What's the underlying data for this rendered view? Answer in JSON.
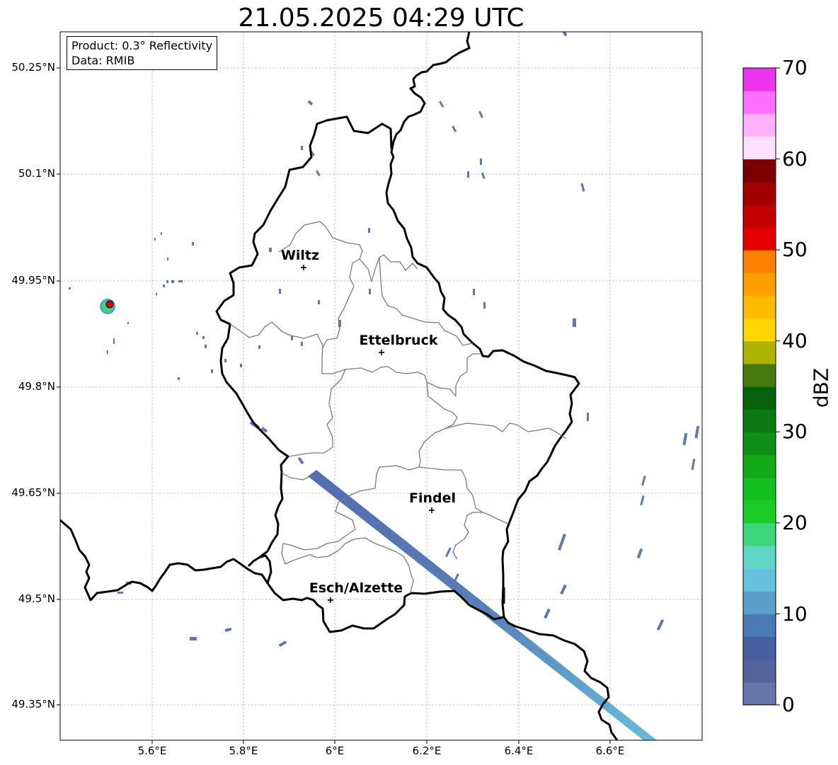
{
  "title": "21.05.2025 04:29 UTC",
  "info": {
    "product": "Product: 0.3° Reflectivity",
    "data_source": "Data: RMIB"
  },
  "axes": {
    "y_ticks": [
      "50.25°N",
      "50.1°N",
      "49.95°N",
      "49.8°N",
      "49.65°N",
      "49.5°N",
      "49.35°N"
    ],
    "x_ticks": [
      "5.6°E",
      "5.8°E",
      "6°E",
      "6.2°E",
      "6.4°E",
      "6.6°E"
    ]
  },
  "cities": [
    {
      "name": "Wiltz"
    },
    {
      "name": "Ettelbruck"
    },
    {
      "name": "Findel"
    },
    {
      "name": "Esch/Alzette"
    }
  ],
  "colorbar": {
    "label": "dBZ",
    "min": 0,
    "max": 70,
    "tick_labels": [
      "0",
      "10",
      "20",
      "30",
      "40",
      "50",
      "60",
      "70"
    ],
    "colors": [
      "#6674a8",
      "#53639c",
      "#4660a2",
      "#4a7ab5",
      "#5b9ec9",
      "#66c2df",
      "#61d6c6",
      "#3dd67a",
      "#1acc26",
      "#14c020",
      "#12aa18",
      "#108f16",
      "#0c7a12",
      "#07600c",
      "#467a0e",
      "#adb300",
      "#ffd600",
      "#ffbb00",
      "#ff9f00",
      "#ff7f00",
      "#e50000",
      "#c30000",
      "#a00000",
      "#7d0000",
      "#ffe0ff",
      "#ffb0ff",
      "#ff70ff",
      "#ee33ee"
    ]
  },
  "radar_site_color": "#e60000"
}
